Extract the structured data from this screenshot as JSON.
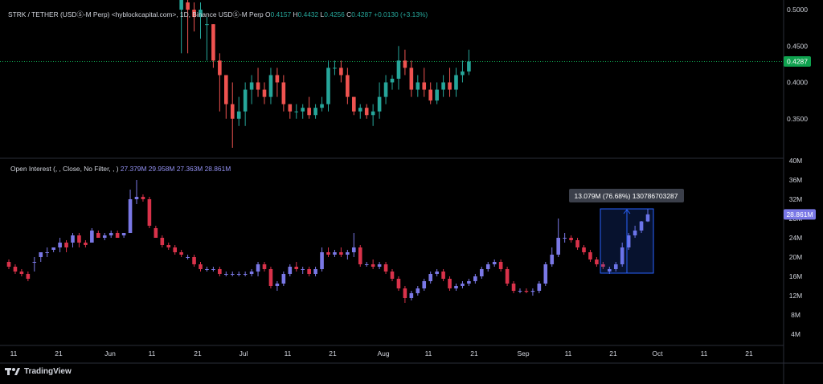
{
  "header": {
    "symbol": "STRK / TETHER (USDⓈ-M Perp) <hyblockcapital.com>, 1D, Binance USDⓈ-M Perp",
    "o_label": "O",
    "open": "0.4157",
    "h_label": "H",
    "high": "0.4432",
    "l_label": "L",
    "low": "0.4256",
    "c_label": "C",
    "close": "0.4287",
    "change": "+0.0130 (+3.13%)"
  },
  "oi_header": {
    "title": "Open Interest (, , Close, No Filter, , )",
    "v1": "27.379M",
    "v2": "29.958M",
    "v3": "27.363M",
    "v4": "28.861M"
  },
  "measure": {
    "label": "13.079M (76.68%) 130786703287"
  },
  "brand": {
    "name": "TradingView"
  },
  "colors": {
    "up": "#26a69a",
    "down": "#ef5350",
    "oi": "#7a78e6",
    "oi_dn": "#d9324a",
    "measure": "#2962ff",
    "price_badge": "#0fa24f",
    "oi_badge": "#7a78e6"
  },
  "chart_data": [
    {
      "type": "candlestick",
      "title": "STRK / TETHER (USDⓈ-M Perp), 1D",
      "ylim": [
        0.3,
        0.51
      ],
      "y_ticks": [
        "0.5000",
        "0.4500",
        "0.4000",
        "0.3500"
      ],
      "last_price": "0.4287",
      "x_labels": [
        "11",
        "21",
        "Jun",
        "11",
        "21",
        "Jul",
        "11",
        "21",
        "Aug",
        "11",
        "21",
        "Sep",
        "11",
        "21",
        "Oct",
        "11",
        "21"
      ],
      "ohlc": [
        [
          27,
          0.5,
          0.53,
          0.44,
          0.52
        ],
        [
          28,
          0.51,
          0.52,
          0.44,
          0.5
        ],
        [
          29,
          0.5,
          0.51,
          0.47,
          0.49
        ],
        [
          30,
          0.49,
          0.51,
          0.46,
          0.5
        ],
        [
          31,
          0.48,
          0.49,
          0.43,
          0.48
        ],
        [
          32,
          0.48,
          0.48,
          0.42,
          0.43
        ],
        [
          33,
          0.43,
          0.44,
          0.36,
          0.41
        ],
        [
          34,
          0.41,
          0.41,
          0.35,
          0.37
        ],
        [
          35,
          0.37,
          0.4,
          0.31,
          0.35
        ],
        [
          36,
          0.35,
          0.38,
          0.34,
          0.36
        ],
        [
          37,
          0.36,
          0.4,
          0.34,
          0.39
        ],
        [
          38,
          0.39,
          0.41,
          0.37,
          0.4
        ],
        [
          39,
          0.4,
          0.42,
          0.38,
          0.39
        ],
        [
          40,
          0.39,
          0.4,
          0.37,
          0.38
        ],
        [
          41,
          0.38,
          0.42,
          0.37,
          0.41
        ],
        [
          42,
          0.41,
          0.42,
          0.38,
          0.4
        ],
        [
          43,
          0.4,
          0.41,
          0.36,
          0.37
        ],
        [
          44,
          0.37,
          0.37,
          0.35,
          0.36
        ],
        [
          45,
          0.36,
          0.37,
          0.35,
          0.36
        ],
        [
          46,
          0.36,
          0.37,
          0.35,
          0.365
        ],
        [
          47,
          0.365,
          0.38,
          0.35,
          0.355
        ],
        [
          48,
          0.355,
          0.37,
          0.35,
          0.365
        ],
        [
          49,
          0.365,
          0.38,
          0.36,
          0.37
        ],
        [
          50,
          0.37,
          0.43,
          0.36,
          0.42
        ],
        [
          51,
          0.42,
          0.43,
          0.41,
          0.42
        ],
        [
          52,
          0.42,
          0.43,
          0.4,
          0.41
        ],
        [
          53,
          0.41,
          0.42,
          0.37,
          0.38
        ],
        [
          54,
          0.38,
          0.38,
          0.355,
          0.36
        ],
        [
          55,
          0.36,
          0.37,
          0.35,
          0.365
        ],
        [
          56,
          0.365,
          0.37,
          0.35,
          0.355
        ],
        [
          57,
          0.355,
          0.37,
          0.34,
          0.36
        ],
        [
          58,
          0.36,
          0.4,
          0.35,
          0.38
        ],
        [
          59,
          0.38,
          0.41,
          0.37,
          0.4
        ],
        [
          60,
          0.4,
          0.41,
          0.39,
          0.405
        ],
        [
          61,
          0.405,
          0.45,
          0.39,
          0.43
        ],
        [
          62,
          0.43,
          0.445,
          0.41,
          0.42
        ],
        [
          63,
          0.42,
          0.43,
          0.38,
          0.39
        ],
        [
          64,
          0.39,
          0.41,
          0.38,
          0.4
        ],
        [
          65,
          0.4,
          0.42,
          0.38,
          0.39
        ],
        [
          66,
          0.39,
          0.4,
          0.37,
          0.375
        ],
        [
          67,
          0.375,
          0.4,
          0.37,
          0.39
        ],
        [
          68,
          0.39,
          0.41,
          0.38,
          0.4
        ],
        [
          69,
          0.4,
          0.42,
          0.38,
          0.39
        ],
        [
          70,
          0.39,
          0.42,
          0.38,
          0.41
        ],
        [
          71,
          0.41,
          0.43,
          0.4,
          0.415
        ],
        [
          72,
          0.415,
          0.445,
          0.41,
          0.4287
        ]
      ]
    },
    {
      "type": "candlestick",
      "title": "Open Interest",
      "ylim": [
        2,
        40
      ],
      "y_ticks": [
        "40M",
        "36M",
        "32M",
        "28M",
        "24M",
        "20M",
        "16M",
        "12M",
        "8M",
        "4M"
      ],
      "last_value": "28.861M",
      "ohlc": [
        [
          0,
          19,
          19.5,
          17.5,
          18
        ],
        [
          1,
          18,
          18.5,
          16.5,
          17
        ],
        [
          2,
          17,
          17.5,
          16,
          16.5
        ],
        [
          3,
          16.5,
          17,
          15,
          15.5
        ],
        [
          4,
          19,
          20,
          17,
          19
        ],
        [
          5,
          20,
          21,
          19,
          21
        ],
        [
          6,
          21,
          22,
          20,
          21
        ],
        [
          7,
          21.5,
          22,
          21,
          22
        ],
        [
          8,
          22,
          24,
          21,
          23
        ],
        [
          9,
          23,
          23.5,
          21,
          22
        ],
        [
          10,
          23,
          25,
          22,
          24.5
        ],
        [
          11,
          24.5,
          25,
          22,
          23
        ],
        [
          12,
          23,
          23.5,
          22,
          22.5
        ],
        [
          13,
          23,
          26,
          23,
          25.5
        ],
        [
          14,
          25,
          25.5,
          24,
          24
        ],
        [
          15,
          24,
          25,
          23.5,
          24.5
        ],
        [
          16,
          24.5,
          25.5,
          24,
          25
        ],
        [
          17,
          25,
          25.5,
          24,
          24
        ],
        [
          18,
          24.5,
          25,
          24,
          25
        ],
        [
          19,
          25,
          34,
          25,
          32
        ],
        [
          20,
          32,
          36,
          31,
          32.5
        ],
        [
          21,
          32.5,
          33,
          31.5,
          32
        ],
        [
          22,
          32,
          32.5,
          26,
          26.5
        ],
        [
          23,
          26,
          26.5,
          24,
          24
        ],
        [
          24,
          24,
          24.5,
          22,
          22.5
        ],
        [
          25,
          22.5,
          23,
          21.5,
          22
        ],
        [
          26,
          22,
          22.5,
          20.5,
          21
        ],
        [
          27,
          21,
          21.5,
          20,
          20.5
        ],
        [
          28,
          20,
          20.5,
          19.5,
          20
        ],
        [
          29,
          20,
          20.5,
          18,
          18.5
        ],
        [
          30,
          18.5,
          19,
          17,
          17.5
        ],
        [
          31,
          17.5,
          18,
          17,
          17.5
        ],
        [
          32,
          17.5,
          18,
          17,
          17.5
        ],
        [
          33,
          17.5,
          18,
          16,
          16.5
        ],
        [
          34,
          16.5,
          17,
          16,
          16.5
        ],
        [
          35,
          16.5,
          17,
          16,
          16.5
        ],
        [
          36,
          16.5,
          17,
          16,
          16.5
        ],
        [
          37,
          16.5,
          17,
          16,
          16.5
        ],
        [
          38,
          16.5,
          17.5,
          16,
          17
        ],
        [
          39,
          17,
          19,
          16,
          18.5
        ],
        [
          40,
          18.5,
          19,
          17,
          17.5
        ],
        [
          41,
          17.5,
          18,
          13.5,
          14
        ],
        [
          42,
          14,
          15,
          13,
          14.5
        ],
        [
          43,
          14.5,
          17,
          14,
          16.5
        ],
        [
          44,
          16.5,
          18.5,
          16,
          18
        ],
        [
          45,
          18,
          19,
          17,
          17.5
        ],
        [
          46,
          17.5,
          18,
          16.5,
          17.5
        ],
        [
          47,
          17.5,
          18,
          16,
          16.5
        ],
        [
          48,
          16.5,
          18,
          16,
          17.5
        ],
        [
          49,
          17.5,
          22,
          17,
          21
        ],
        [
          50,
          21,
          22,
          20,
          20.5
        ],
        [
          51,
          20.5,
          21.5,
          20,
          21
        ],
        [
          52,
          21,
          22,
          20,
          20.5
        ],
        [
          53,
          20.5,
          21.5,
          19.5,
          21
        ],
        [
          54,
          21,
          25,
          20,
          22
        ],
        [
          55,
          22,
          22.5,
          18,
          18.5
        ],
        [
          56,
          18.5,
          19,
          18,
          18.5
        ],
        [
          57,
          18.5,
          19.5,
          17.5,
          18
        ],
        [
          58,
          18,
          19,
          17.5,
          18.5
        ],
        [
          59,
          18.5,
          19,
          16.5,
          17
        ],
        [
          60,
          17,
          17.5,
          15,
          15.5
        ],
        [
          61,
          15.5,
          16,
          13,
          13.5
        ],
        [
          62,
          13.5,
          14,
          10.5,
          11.5
        ],
        [
          63,
          11.5,
          13,
          11,
          12.5
        ],
        [
          64,
          12.5,
          14,
          12,
          13.5
        ],
        [
          65,
          13.5,
          15.5,
          13,
          15
        ],
        [
          66,
          15,
          17,
          14.5,
          16.5
        ],
        [
          67,
          16.5,
          17.5,
          16,
          17
        ],
        [
          68,
          17,
          17.5,
          15,
          15.5
        ],
        [
          69,
          15.5,
          16,
          13,
          13.5
        ],
        [
          70,
          13.5,
          14.5,
          13,
          14
        ],
        [
          71,
          14,
          15,
          13.5,
          14.5
        ],
        [
          72,
          14.5,
          15.5,
          14,
          15
        ],
        [
          73,
          15,
          16.5,
          14.5,
          16
        ],
        [
          74,
          16,
          18,
          15.5,
          17.5
        ],
        [
          75,
          17.5,
          19,
          17,
          18.5
        ],
        [
          76,
          18.5,
          19.5,
          18,
          19
        ],
        [
          77,
          19,
          19.5,
          17,
          17.5
        ],
        [
          78,
          17.5,
          18,
          14,
          14.5
        ],
        [
          79,
          14.5,
          15,
          12.5,
          13
        ],
        [
          80,
          13,
          13.5,
          12.5,
          13
        ],
        [
          81,
          13,
          13.5,
          12.5,
          12.8
        ],
        [
          82,
          12.8,
          13.5,
          12,
          13
        ],
        [
          83,
          13,
          15,
          12.5,
          14.5
        ],
        [
          84,
          14.5,
          19,
          14,
          18.5
        ],
        [
          85,
          18.5,
          22,
          18,
          20.5
        ],
        [
          86,
          20.5,
          28,
          20,
          24
        ],
        [
          87,
          24,
          25,
          23,
          24
        ],
        [
          88,
          24,
          24.5,
          23,
          23.5
        ],
        [
          89,
          23.5,
          24,
          21.5,
          22
        ],
        [
          90,
          22,
          22.5,
          20.5,
          21
        ],
        [
          91,
          21,
          21.5,
          19,
          19.5
        ],
        [
          92,
          19.5,
          20,
          18,
          18.5
        ],
        [
          93,
          18.5,
          19,
          17.5,
          18
        ],
        [
          94,
          17,
          18,
          16.5,
          17.5
        ],
        [
          95,
          17.5,
          19,
          17,
          18.5
        ],
        [
          96,
          18.5,
          23,
          18,
          22
        ],
        [
          97,
          22,
          25,
          21.5,
          24.5
        ],
        [
          98,
          24.5,
          26.5,
          24,
          25.5
        ],
        [
          99,
          25.5,
          27.5,
          25,
          27.4
        ],
        [
          100,
          27.4,
          30,
          27.3,
          28.861
        ]
      ]
    }
  ]
}
